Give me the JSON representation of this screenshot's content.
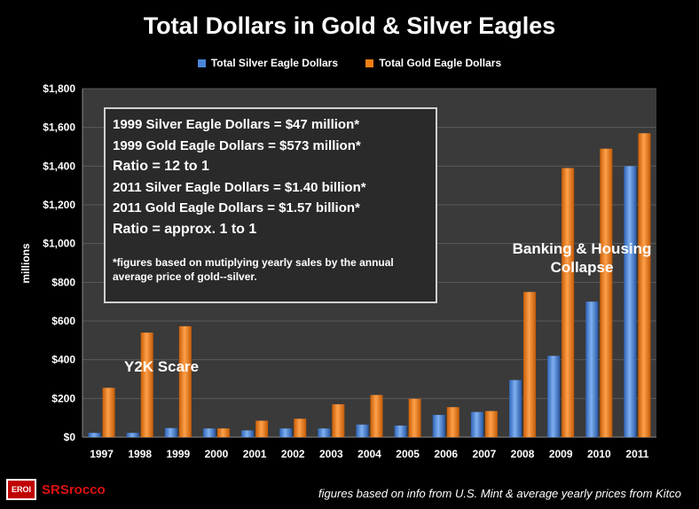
{
  "title": "Total Dollars in Gold & Silver Eagles",
  "legend": {
    "silver": {
      "label": "Total Silver Eagle Dollars",
      "color": "#4a86d8"
    },
    "gold": {
      "label": "Total Gold Eagle Dollars",
      "color": "#f07e14"
    }
  },
  "annotation": {
    "line1": "1999 Silver Eagle Dollars = $47 million*",
    "line2": "1999 Gold Eagle Dollars = $573 million*",
    "line3": "Ratio = 12 to 1",
    "line4": "2011 Silver Eagle Dollars = $1.40 billion*",
    "line5": "2011 Gold Eagle Dollars = $1.57 billion*",
    "line6": "Ratio = approx. 1 to 1",
    "footnote": "*figures based on mutiplying  yearly sales by the annual average price of gold--silver."
  },
  "callouts": {
    "y2k": "Y2K Scare",
    "banking_line1": "Banking & Housing",
    "banking_line2": "Collapse"
  },
  "footer": {
    "source": "figures based on info from U.S. Mint & average yearly prices from Kitco",
    "logo_mark": "EROI",
    "logo_text": "SRSrocco"
  },
  "chart_data": {
    "type": "bar",
    "title": "Total Dollars in Gold & Silver Eagles",
    "xlabel": "",
    "ylabel": "millions",
    "ylim": [
      0,
      1800
    ],
    "yticks": [
      0,
      200,
      400,
      600,
      800,
      1000,
      1200,
      1400,
      1600,
      1800
    ],
    "ytick_labels": [
      "$0",
      "$200",
      "$400",
      "$600",
      "$800",
      "$1,000",
      "$1,200",
      "$1,400",
      "$1,600",
      "$1,800"
    ],
    "grid": true,
    "legend_position": "top",
    "categories": [
      "1997",
      "1998",
      "1999",
      "2000",
      "2001",
      "2002",
      "2003",
      "2004",
      "2005",
      "2006",
      "2007",
      "2008",
      "2009",
      "2010",
      "2011"
    ],
    "series": [
      {
        "name": "Total Silver Eagle Dollars",
        "color": "#4a86d8",
        "values": [
          22,
          22,
          47,
          45,
          35,
          45,
          45,
          65,
          60,
          115,
          130,
          295,
          420,
          700,
          1400
        ]
      },
      {
        "name": "Total Gold Eagle Dollars",
        "color": "#f07e14",
        "values": [
          255,
          540,
          573,
          45,
          85,
          95,
          170,
          218,
          198,
          155,
          135,
          750,
          1390,
          1490,
          1570
        ]
      }
    ]
  }
}
